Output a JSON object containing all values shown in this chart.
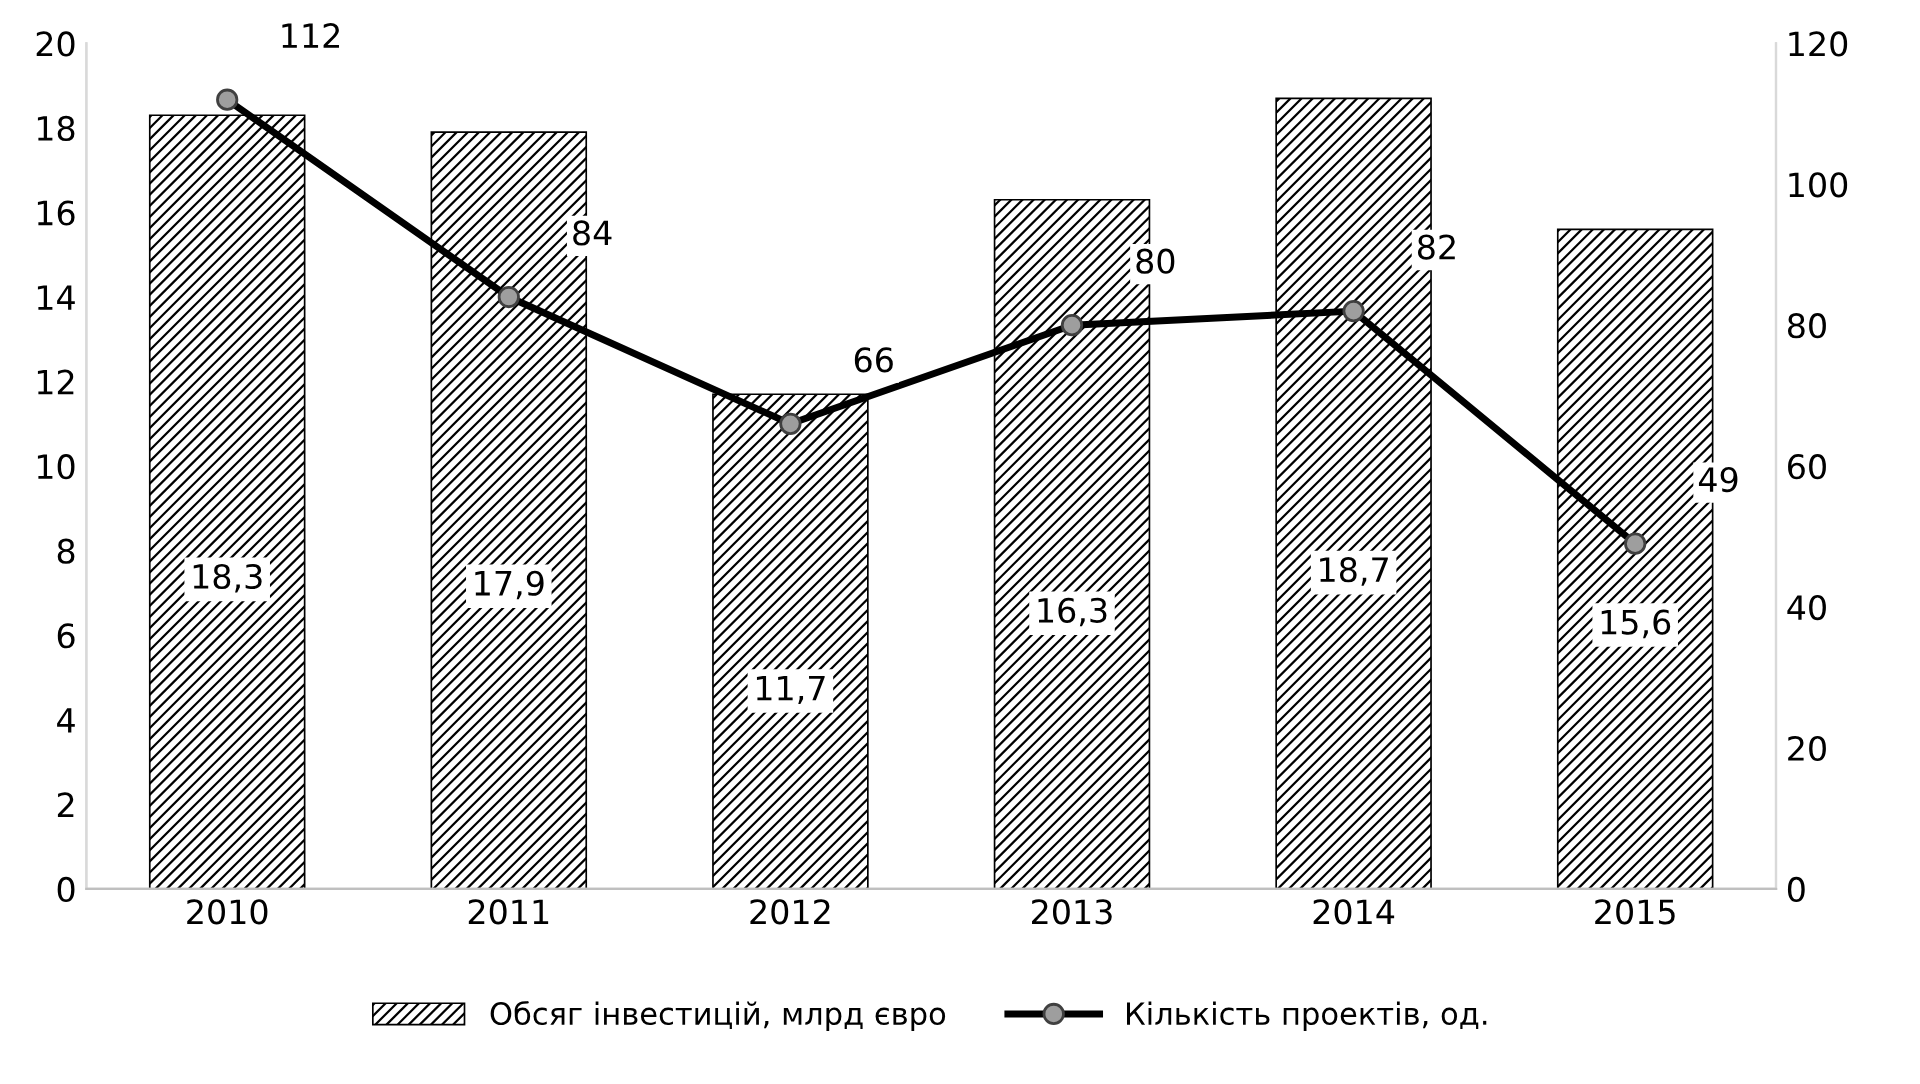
{
  "chart_data": {
    "type": "bar",
    "categories": [
      "2010",
      "2011",
      "2012",
      "2013",
      "2014",
      "2015"
    ],
    "series": [
      {
        "name": "Обсяг інвестицій, млрд євро",
        "color": "#000000",
        "values": [
          18.3,
          17.9,
          11.7,
          16.3,
          18.7,
          15.6
        ],
        "value_labels": [
          "18,3",
          "17,9",
          "11,7",
          "16,3",
          "18,7",
          "15,6"
        ]
      },
      {
        "name": "Кількість проектів, од.",
        "type": "line",
        "axis": "y2",
        "color": "#000000",
        "marker": "circle",
        "values": [
          112,
          84,
          66,
          80,
          82,
          49
        ],
        "data_labels": true
      }
    ],
    "ylim": [
      0,
      20
    ],
    "yticks": [
      0,
      2,
      4,
      6,
      8,
      10,
      12,
      14,
      16,
      18,
      20
    ],
    "y2lim": [
      0,
      120
    ],
    "y2ticks": [
      0,
      20,
      40,
      60,
      80,
      100,
      120
    ],
    "grid": false,
    "legend": "bottom"
  }
}
